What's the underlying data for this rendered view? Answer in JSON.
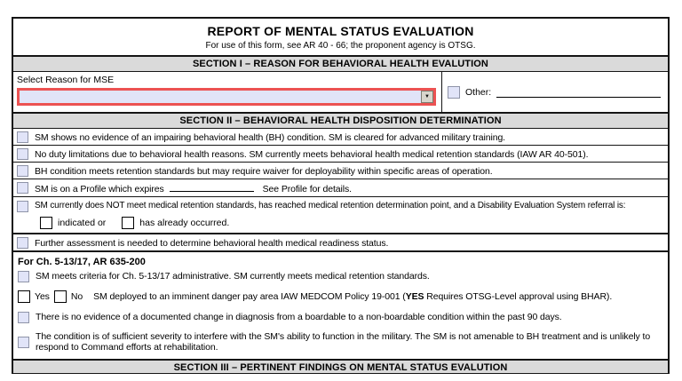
{
  "form": {
    "title": "REPORT OF MENTAL STATUS EVALUATION",
    "subtitle": "For use of this form, see AR 40 - 66; the proponent agency is OTSG.",
    "colors": {
      "highlight_field_border": "#ec5252",
      "field_fill": "#e1e4f8",
      "section_bar_bg": "#dadada"
    },
    "icons": {
      "dropdown_arrow": "▼"
    },
    "section1": {
      "header": "SECTION I – REASON FOR BEHAVIORAL HEALTH EVALUTION",
      "select_label": "Select Reason for MSE",
      "select_value": "",
      "other_label": "Other:",
      "other_value": ""
    },
    "section2": {
      "header": "SECTION II – BEHAVIORAL HEALTH DISPOSITION DETERMINATION",
      "simple_rows": [
        "SM shows no evidence of an impairing behavioral health (BH) condition. SM is cleared for advanced military training.",
        "No duty limitations due to behavioral health reasons. SM currently meets behavioral health medical retention standards (IAW AR 40-501).",
        "BH condition meets retention standards but may require waiver for deployability within specific areas of operation."
      ],
      "profile_row": {
        "prefix": "SM is on a Profile which expires",
        "expires_value": "",
        "suffix": "See Profile for details."
      },
      "des_row": {
        "text": "SM currently does NOT meet medical retention standards, has reached medical retention determination point, and a Disability Evaluation System referral is:",
        "option1": "indicated or",
        "option2": "has already occurred."
      },
      "further_row": "Further assessment is needed to determine behavioral health medical readiness status.",
      "chapter": {
        "heading": "For Ch. 5-13/17, AR 635-200",
        "row1": "SM meets criteria for Ch. 5-13/17 administrative. SM currently meets medical retention standards.",
        "deploy_row": {
          "yes_label": "Yes",
          "no_label": "No",
          "text_prefix": "SM deployed to an imminent danger pay area IAW MEDCOM Policy 19-001 (",
          "text_bold": "YES",
          "text_suffix": " Requires OTSG-Level approval using BHAR)."
        },
        "row3": "There is no evidence of a documented change in diagnosis from a boardable to a non-boardable condition within the past 90 days.",
        "row4": "The condition is of sufficient severity to interfere with the SM's ability to function in the military. The SM is not amenable to BH treatment and is unlikely to respond to Command efforts at rehabilitation."
      }
    },
    "section3": {
      "header": "SECTION III – PERTINENT FINDINGS ON MENTAL STATUS EVALUTION"
    }
  }
}
